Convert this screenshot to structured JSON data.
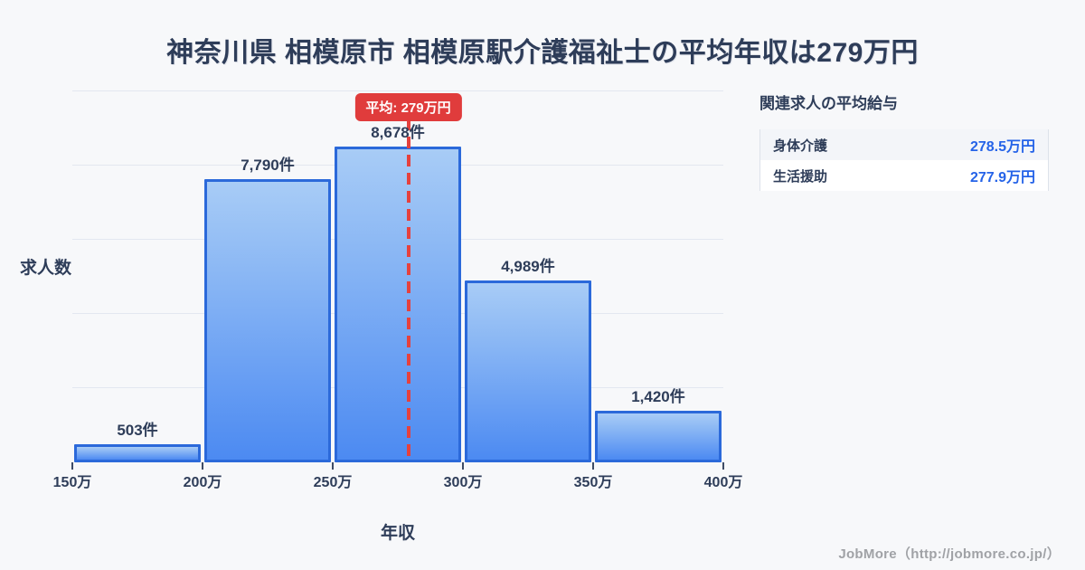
{
  "title": "神奈川県 相模原市 相模原駅介護福祉士の平均年収は279万円",
  "chart": {
    "y_axis_label": "求人数",
    "x_axis_label": "年収",
    "x_min": 150,
    "x_max": 400,
    "x_ticks": [
      "150万",
      "200万",
      "250万",
      "300万",
      "350万",
      "400万"
    ],
    "bars": [
      {
        "label": "503件",
        "value": 503
      },
      {
        "label": "7,790件",
        "value": 7790
      },
      {
        "label": "8,678件",
        "value": 8678
      },
      {
        "label": "4,989件",
        "value": 4989
      },
      {
        "label": "1,420件",
        "value": 1420
      }
    ],
    "mean_value": 279,
    "mean_label": "平均: 279万円"
  },
  "panel": {
    "title": "関連求人の平均給与",
    "rows": [
      {
        "label": "身体介護",
        "value": "278.5万円"
      },
      {
        "label": "生活援助",
        "value": "277.9万円"
      }
    ]
  },
  "footer": "JobMore（http://jobmore.co.jp/）",
  "colors": {
    "background": "#f7f8fa",
    "text_dark": "#2e3d59",
    "bar_border": "#2b69da",
    "bar_gradient_top": "#a8ccf6",
    "bar_gradient_bottom": "#4c8af2",
    "mean_red": "#e03c3c",
    "value_blue": "#2563e8",
    "gridline": "#e3e7f0",
    "footer_gray": "#a0a2a6"
  },
  "chart_data": {
    "type": "bar",
    "subtype": "histogram",
    "title": "神奈川県 相模原市 相模原駅介護福祉士の平均年収は279万円",
    "categories": [
      "150万-200万",
      "200万-250万",
      "250万-300万",
      "300万-350万",
      "350万-400万"
    ],
    "values": [
      503,
      7790,
      8678,
      4989,
      1420
    ],
    "bar_labels": [
      "503件",
      "7,790件",
      "8,678件",
      "4,989件",
      "1,420件"
    ],
    "xlabel": "年収",
    "ylabel": "求人数",
    "x_tick_labels": [
      "150万",
      "200万",
      "250万",
      "300万",
      "350万",
      "400万"
    ],
    "x_range_man_yen": [
      150,
      400
    ],
    "mean_man_yen": 279,
    "mean_annotation": "平均: 279万円",
    "grid": "horizontal-only",
    "legend": "none",
    "related_salaries": [
      {
        "label": "身体介護",
        "value_man_yen": 278.5
      },
      {
        "label": "生活援助",
        "value_man_yen": 277.9
      }
    ],
    "source": "JobMore（http://jobmore.co.jp/）"
  }
}
